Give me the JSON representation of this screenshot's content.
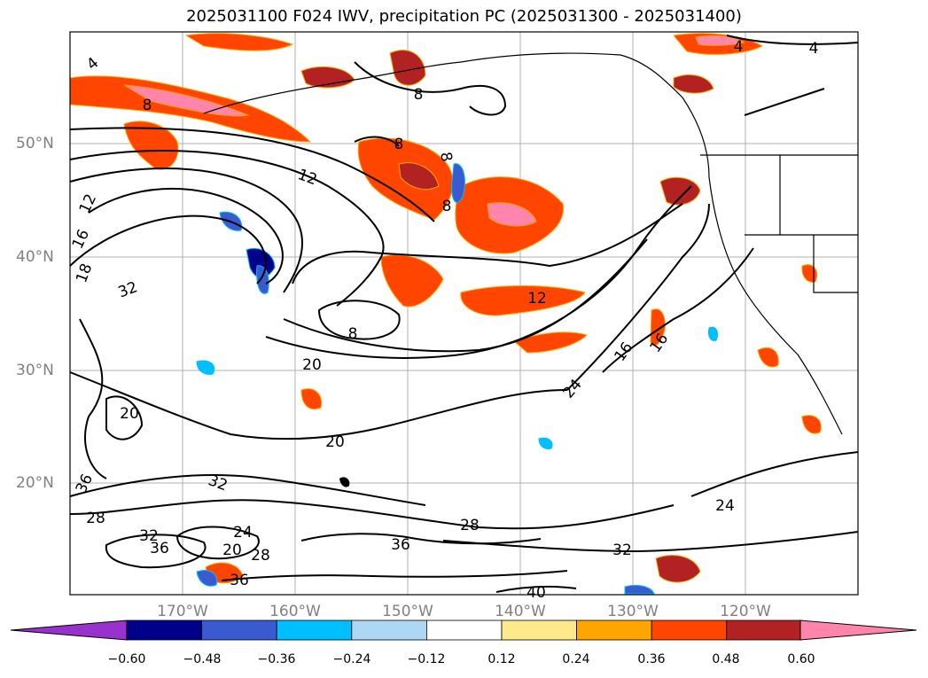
{
  "title": "2025031100 F024 IWV, precipitation PC (2025031300 - 2025031400)",
  "lat_labels": [
    "50°N",
    "40°N",
    "30°N",
    "20°N"
  ],
  "lon_labels": [
    "170°W",
    "160°W",
    "150°W",
    "140°W",
    "130°W",
    "120°W"
  ],
  "contour_labels": [
    "4",
    "4",
    "4",
    "8",
    "8",
    "8",
    "8",
    "8",
    "8",
    "12",
    "12",
    "12",
    "16",
    "16",
    "16",
    "18",
    "20",
    "20",
    "20",
    "20",
    "24",
    "24",
    "24",
    "28",
    "28",
    "28",
    "32",
    "32",
    "32",
    "32",
    "36",
    "36",
    "36",
    "36",
    "40"
  ],
  "colorbar": {
    "ticks": [
      "−0.60",
      "−0.48",
      "−0.36",
      "−0.24",
      "−0.12",
      "0.12",
      "0.24",
      "0.36",
      "0.48",
      "0.60"
    ],
    "colors": [
      "#9932cc",
      "#00008b",
      "#3a5bd0",
      "#00bfff",
      "#add8f5",
      "#ffffff",
      "#ffe98a",
      "#ffa500",
      "#ff4500",
      "#b22222",
      "#ff85ad"
    ]
  }
}
